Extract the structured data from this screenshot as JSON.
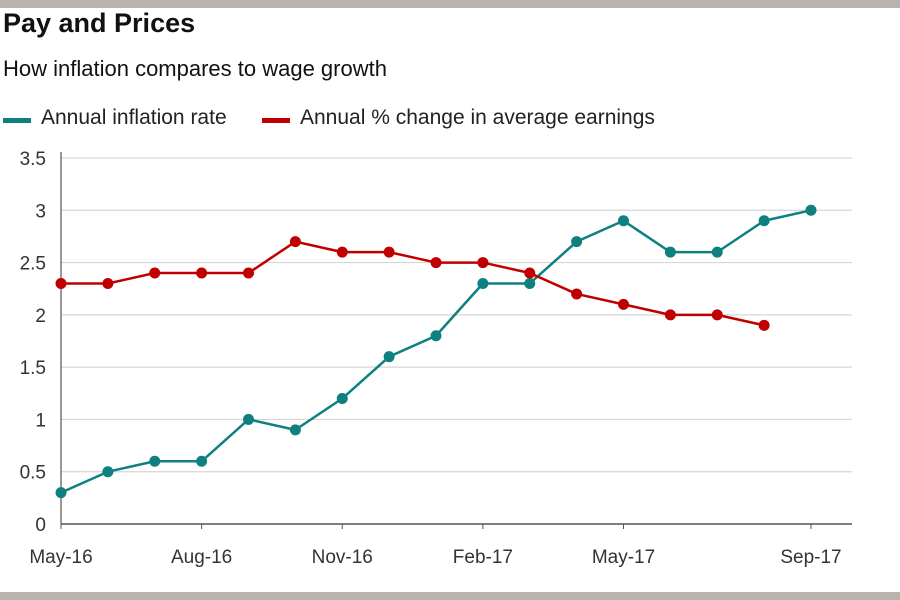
{
  "title": "Pay and Prices",
  "subtitle": "How inflation compares to wage growth",
  "colors": {
    "inflation": "#0e8080",
    "earnings": "#c00000",
    "grid": "#d6d6d6",
    "axis": "#555555"
  },
  "chart_data": {
    "type": "line",
    "title": "Pay and Prices",
    "subtitle": "How inflation compares to wage growth",
    "xlabel": "",
    "ylabel": "",
    "ylim": [
      0,
      3.5
    ],
    "yticks": [
      "0",
      "0.5",
      "1",
      "1.5",
      "2",
      "2.5",
      "3",
      "3.5"
    ],
    "x": [
      "May-16",
      "Jun-16",
      "Jul-16",
      "Aug-16",
      "Sep-16",
      "Oct-16",
      "Nov-16",
      "Dec-16",
      "Jan-17",
      "Feb-17",
      "Mar-17",
      "Apr-17",
      "May-17",
      "Jun-17",
      "Jul-17",
      "Aug-17",
      "Sep-17"
    ],
    "xtick_labels": [
      "May-16",
      "Aug-16",
      "Nov-16",
      "Feb-17",
      "May-17",
      "Sep-17"
    ],
    "series": [
      {
        "name": "Annual inflation rate",
        "color": "#0e8080",
        "values": [
          0.3,
          0.5,
          0.6,
          0.6,
          1.0,
          0.9,
          1.2,
          1.6,
          1.8,
          2.3,
          2.3,
          2.7,
          2.9,
          2.6,
          2.6,
          2.9,
          3.0
        ]
      },
      {
        "name": "Annual % change in average earnings",
        "color": "#c00000",
        "values": [
          2.3,
          2.3,
          2.4,
          2.4,
          2.4,
          2.7,
          2.6,
          2.6,
          2.5,
          2.5,
          2.4,
          2.2,
          2.1,
          2.0,
          2.0,
          1.9,
          null
        ]
      }
    ],
    "grid": true,
    "legend": "top-left"
  }
}
